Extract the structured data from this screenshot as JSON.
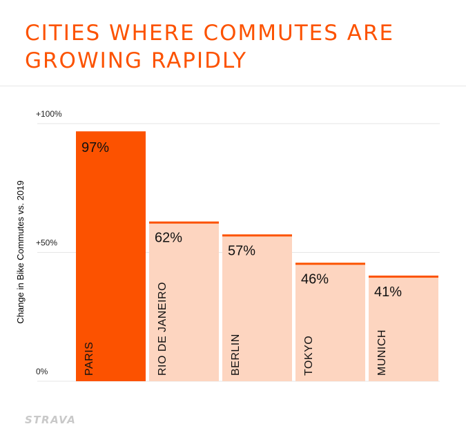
{
  "title": {
    "line1": "CITIES WHERE COMMUTES ARE",
    "line2": "GROWING RAPIDLY"
  },
  "logo": "STRAVA",
  "colors": {
    "accent": "#fc5200",
    "bar_light": "#fdd5c0",
    "grid": "#e6e6e6"
  },
  "chart_data": {
    "type": "bar",
    "title": "CITIES WHERE COMMUTES ARE GROWING RAPIDLY",
    "ylabel": "Change in Bike Commutes vs. 2019",
    "xlabel": "",
    "ylim": [
      0,
      100
    ],
    "yticks": [
      {
        "value": 0,
        "label": "0%"
      },
      {
        "value": 50,
        "label": "+50%"
      },
      {
        "value": 100,
        "label": "+100%"
      }
    ],
    "grid": true,
    "categories": [
      "PARIS",
      "RIO DE JANEIRO",
      "BERLIN",
      "TOKYO",
      "MUNICH"
    ],
    "values": [
      97,
      62,
      57,
      46,
      41
    ],
    "data_labels": [
      "97%",
      "62%",
      "57%",
      "46%",
      "41%"
    ],
    "highlighted": "PARIS"
  }
}
